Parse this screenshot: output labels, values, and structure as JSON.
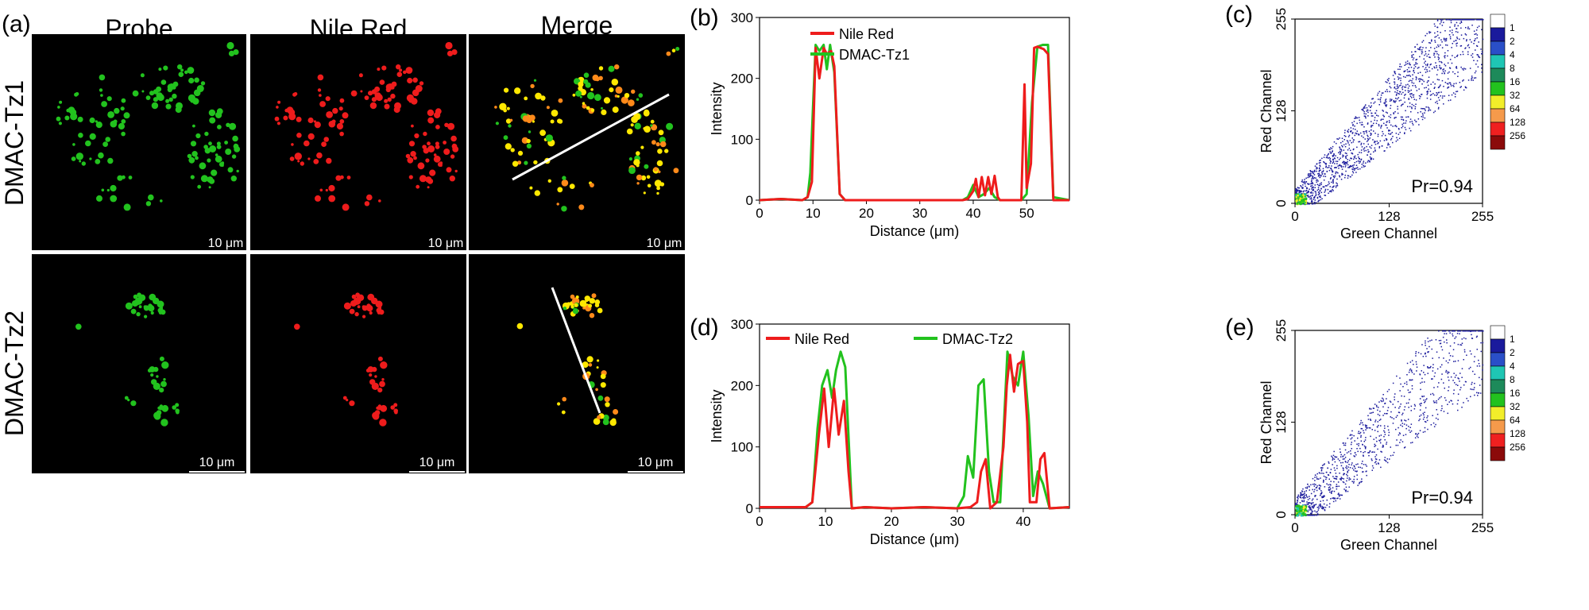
{
  "panel_labels": {
    "a": "(a)",
    "b": "(b)",
    "c": "(c)",
    "d": "(d)",
    "e": "(e)"
  },
  "column_headers": [
    "Probe",
    "Nile Red",
    "Merge"
  ],
  "row_labels": [
    "DMAC-Tz1",
    "DMAC-Tz2"
  ],
  "scale_bar_label": "10 μm",
  "colors": {
    "green": "#22c21e",
    "red": "#ee1c1c",
    "yellow": "#ffe800"
  },
  "chart_data": [
    {
      "panel": "(b)",
      "type": "line",
      "xlabel": "Distance (μm)",
      "ylabel": "Intensity",
      "xlim": [
        0,
        58
      ],
      "ylim": [
        0,
        300
      ],
      "xticks": [
        0,
        10,
        20,
        30,
        40,
        50
      ],
      "yticks": [
        0,
        100,
        200,
        300
      ],
      "legend_position": "top-right",
      "series": [
        {
          "name": "Nile Red",
          "color": "#ee1c1c",
          "x": [
            0,
            4,
            8,
            9,
            9.8,
            10.5,
            11.2,
            12,
            12.6,
            13.4,
            14,
            15,
            16,
            20,
            30,
            38,
            39,
            40,
            40.5,
            41,
            41.6,
            42.2,
            42.8,
            43.4,
            44,
            44.6,
            45,
            47,
            49,
            49.6,
            50,
            50.8,
            51.4,
            52,
            52.6,
            53.2,
            54,
            55,
            58
          ],
          "y": [
            0,
            2,
            0,
            5,
            30,
            250,
            200,
            250,
            240,
            245,
            220,
            10,
            0,
            0,
            0,
            0,
            2,
            15,
            35,
            5,
            38,
            8,
            38,
            10,
            40,
            5,
            0,
            0,
            0,
            190,
            20,
            60,
            250,
            252,
            250,
            248,
            240,
            0,
            0
          ]
        },
        {
          "name": "DMAC-Tz1",
          "color": "#22c21e",
          "x": [
            0,
            4,
            8,
            9,
            9.5,
            10,
            10.5,
            11.2,
            12,
            12.6,
            13.2,
            14,
            15,
            16,
            20,
            30,
            38,
            39,
            40,
            41,
            42,
            43,
            44,
            45,
            47,
            49,
            50,
            51,
            52,
            53,
            54,
            55,
            58
          ],
          "y": [
            0,
            2,
            0,
            5,
            45,
            150,
            255,
            245,
            255,
            215,
            255,
            210,
            10,
            0,
            0,
            0,
            0,
            5,
            25,
            5,
            10,
            20,
            5,
            0,
            0,
            0,
            10,
            160,
            252,
            255,
            255,
            5,
            0
          ]
        }
      ]
    },
    {
      "panel": "(c)",
      "type": "heatmap",
      "xlabel": "Green Channel",
      "ylabel": "Red Channel",
      "xlim": [
        0,
        255
      ],
      "ylim": [
        0,
        255
      ],
      "xticks": [
        0,
        128,
        255
      ],
      "yticks": [
        0,
        128,
        255
      ],
      "annotation": "Pr=0.94",
      "colorbar": {
        "labels": [
          "1",
          "2",
          "4",
          "8",
          "16",
          "32",
          "64",
          "128",
          "256"
        ],
        "colors": [
          "#ffffff",
          "#1a1a9c",
          "#2a4fc8",
          "#1fc6b4",
          "#1d8a5a",
          "#22c21e",
          "#f2ee2a",
          "#f59a4b",
          "#ef2020",
          "#8b0a0a"
        ]
      }
    },
    {
      "panel": "(d)",
      "type": "line",
      "xlabel": "Distance (μm)",
      "ylabel": "Intensity",
      "xlim": [
        0,
        47
      ],
      "ylim": [
        0,
        300
      ],
      "xticks": [
        0,
        10,
        20,
        30,
        40
      ],
      "yticks": [
        0,
        100,
        200,
        300
      ],
      "legend_position": "top",
      "series": [
        {
          "name": "Nile Red",
          "color": "#ee1c1c",
          "x": [
            0,
            4,
            7,
            8,
            9,
            9.8,
            10.5,
            11.3,
            12,
            12.8,
            13.5,
            14,
            16,
            20,
            25,
            30,
            32,
            33,
            33.6,
            34.3,
            35,
            36,
            37,
            37.5,
            38,
            38.6,
            39.2,
            40,
            40.6,
            41,
            42,
            42.6,
            43.2,
            44,
            47
          ],
          "y": [
            2,
            2,
            2,
            10,
            120,
            195,
            100,
            195,
            120,
            175,
            60,
            0,
            2,
            0,
            2,
            0,
            2,
            10,
            60,
            80,
            0,
            10,
            100,
            200,
            250,
            190,
            235,
            240,
            140,
            10,
            10,
            80,
            90,
            0,
            2
          ]
        },
        {
          "name": "DMAC-Tz2",
          "color": "#22c21e",
          "x": [
            0,
            4,
            7,
            8,
            8.8,
            9.5,
            10.3,
            11,
            11.6,
            12.3,
            13,
            14,
            16,
            20,
            25,
            30,
            31,
            31.6,
            32.4,
            33.2,
            34,
            34.8,
            35.5,
            36.5,
            37,
            37.6,
            38.4,
            39.2,
            40,
            40.8,
            41.5,
            42.2,
            43,
            44,
            47
          ],
          "y": [
            2,
            2,
            2,
            10,
            130,
            200,
            225,
            180,
            225,
            255,
            230,
            0,
            2,
            0,
            2,
            0,
            20,
            85,
            50,
            200,
            210,
            60,
            10,
            10,
            120,
            255,
            215,
            200,
            255,
            150,
            20,
            60,
            40,
            0,
            2
          ]
        }
      ]
    },
    {
      "panel": "(e)",
      "type": "heatmap",
      "xlabel": "Green Channel",
      "ylabel": "Red Channel",
      "xlim": [
        0,
        255
      ],
      "ylim": [
        0,
        255
      ],
      "xticks": [
        0,
        128,
        255
      ],
      "yticks": [
        0,
        128,
        255
      ],
      "annotation": "Pr=0.94",
      "colorbar": {
        "labels": [
          "1",
          "2",
          "4",
          "8",
          "16",
          "32",
          "64",
          "128",
          "256"
        ],
        "colors": [
          "#ffffff",
          "#1a1a9c",
          "#2a4fc8",
          "#1fc6b4",
          "#1d8a5a",
          "#22c21e",
          "#f2ee2a",
          "#f59a4b",
          "#ef2020",
          "#8b0a0a"
        ]
      }
    }
  ]
}
